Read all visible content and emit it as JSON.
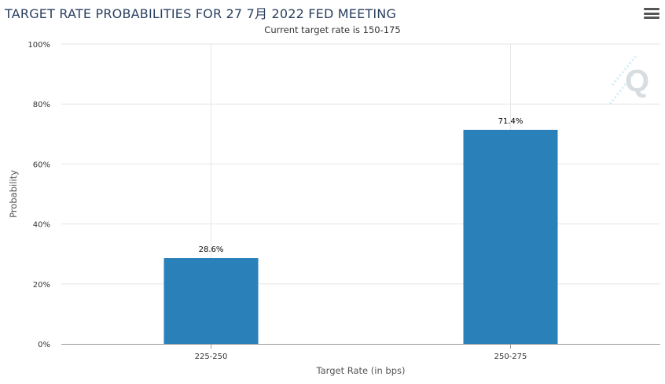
{
  "header": {
    "title": "TARGET RATE PROBABILITIES FOR 27 7月 2022 FED MEETING",
    "subtitle": "Current target rate is 150-175",
    "menu_icon": "hamburger-menu-icon",
    "watermark_icon": "q-logo-icon"
  },
  "chart_data": {
    "type": "bar",
    "title": "TARGET RATE PROBABILITIES FOR 27 7月 2022 FED MEETING",
    "subtitle": "Current target rate is 150-175",
    "xlabel": "Target Rate (in bps)",
    "ylabel": "Probability",
    "categories": [
      "225-250",
      "250-275"
    ],
    "values": [
      28.6,
      71.4
    ],
    "data_labels": [
      "28.6%",
      "71.4%"
    ],
    "ylim": [
      0,
      100
    ],
    "yticks": [
      "0%",
      "20%",
      "40%",
      "60%",
      "80%",
      "100%"
    ],
    "grid": true,
    "colors": {
      "bar": "#2a80b9",
      "grid": "#e6e6e6",
      "axis": "#999999"
    }
  }
}
